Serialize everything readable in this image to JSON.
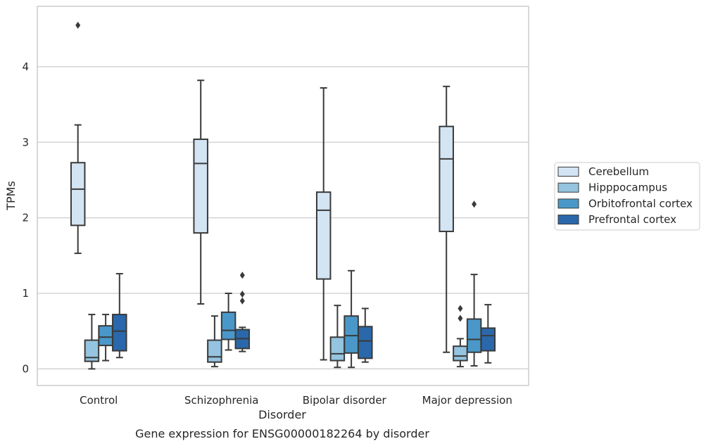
{
  "chart_data": {
    "type": "box",
    "title": "",
    "caption": "Gene expression for ENSG00000182264 by disorder",
    "xlabel": "Disorder",
    "ylabel": "TPMs",
    "ylim": [
      -0.22,
      4.8
    ],
    "yticks": [
      0,
      1,
      2,
      3,
      4
    ],
    "categories": [
      "Control",
      "Schizophrenia",
      "Bipolar disorder",
      "Major depression"
    ],
    "grid": "horizontal",
    "legend_position": "right",
    "series": [
      {
        "name": "Cerebellum",
        "color": "#d3e4f3",
        "boxes": [
          {
            "whislo": 1.53,
            "q1": 1.9,
            "med": 2.38,
            "q3": 2.73,
            "whishi": 3.23,
            "fliers": [
              4.55
            ]
          },
          {
            "whislo": 0.86,
            "q1": 1.8,
            "med": 2.72,
            "q3": 3.04,
            "whishi": 3.82,
            "fliers": []
          },
          {
            "whislo": 0.12,
            "q1": 1.19,
            "med": 2.1,
            "q3": 2.34,
            "whishi": 3.72,
            "fliers": []
          },
          {
            "whislo": 0.22,
            "q1": 1.82,
            "med": 2.78,
            "q3": 3.21,
            "whishi": 3.74,
            "fliers": []
          }
        ]
      },
      {
        "name": "Hipppocampus",
        "color": "#94c4df",
        "boxes": [
          {
            "whislo": 0.0,
            "q1": 0.1,
            "med": 0.15,
            "q3": 0.38,
            "whishi": 0.72,
            "fliers": []
          },
          {
            "whislo": 0.03,
            "q1": 0.09,
            "med": 0.16,
            "q3": 0.38,
            "whishi": 0.7,
            "fliers": []
          },
          {
            "whislo": 0.02,
            "q1": 0.11,
            "med": 0.2,
            "q3": 0.42,
            "whishi": 0.84,
            "fliers": []
          },
          {
            "whislo": 0.03,
            "q1": 0.11,
            "med": 0.17,
            "q3": 0.3,
            "whishi": 0.4,
            "fliers": [
              0.8,
              0.67
            ]
          }
        ]
      },
      {
        "name": "Orbitofrontal cortex",
        "color": "#4a98c9",
        "boxes": [
          {
            "whislo": 0.11,
            "q1": 0.31,
            "med": 0.42,
            "q3": 0.57,
            "whishi": 0.72,
            "fliers": []
          },
          {
            "whislo": 0.25,
            "q1": 0.39,
            "med": 0.51,
            "q3": 0.75,
            "whishi": 1.0,
            "fliers": []
          },
          {
            "whislo": 0.02,
            "q1": 0.21,
            "med": 0.44,
            "q3": 0.7,
            "whishi": 1.3,
            "fliers": []
          },
          {
            "whislo": 0.04,
            "q1": 0.22,
            "med": 0.39,
            "q3": 0.66,
            "whishi": 1.25,
            "fliers": [
              2.18
            ]
          }
        ]
      },
      {
        "name": "Prefrontal cortex",
        "color": "#2a68ab",
        "boxes": [
          {
            "whislo": 0.15,
            "q1": 0.24,
            "med": 0.5,
            "q3": 0.72,
            "whishi": 1.26,
            "fliers": []
          },
          {
            "whislo": 0.23,
            "q1": 0.27,
            "med": 0.4,
            "q3": 0.52,
            "whishi": 0.55,
            "fliers": [
              1.24,
              0.99,
              0.9
            ]
          },
          {
            "whislo": 0.09,
            "q1": 0.14,
            "med": 0.37,
            "q3": 0.56,
            "whishi": 0.8,
            "fliers": []
          },
          {
            "whislo": 0.08,
            "q1": 0.24,
            "med": 0.44,
            "q3": 0.54,
            "whishi": 0.85,
            "fliers": []
          }
        ]
      }
    ]
  }
}
